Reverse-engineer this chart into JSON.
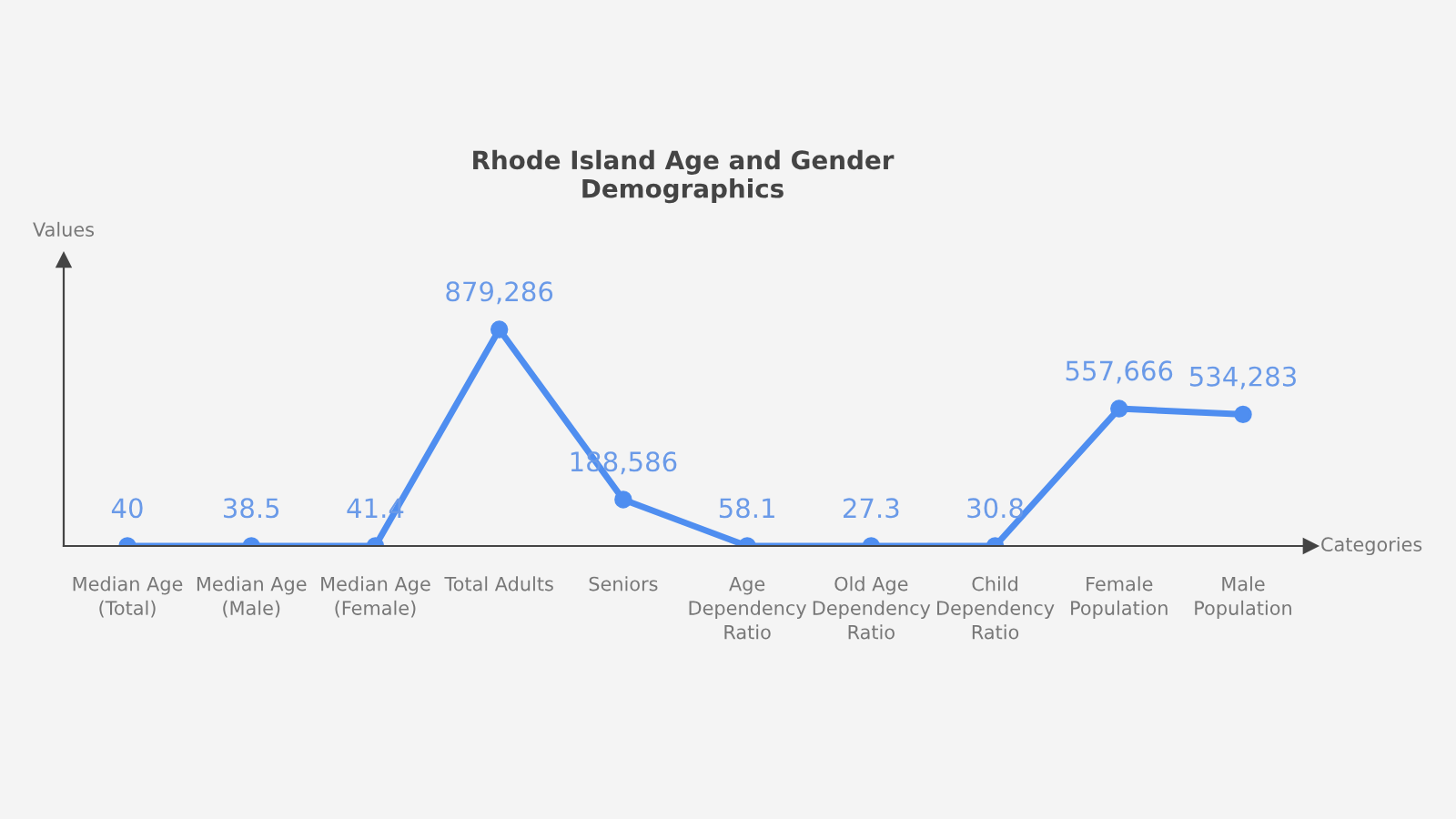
{
  "chart_data": {
    "type": "line",
    "title": "Rhode Island Age and Gender\nDemographics",
    "xlabel": "Categories",
    "ylabel": "Values",
    "categories": [
      "Median Age\n(Total)",
      "Median Age\n(Male)",
      "Median Age\n(Female)",
      "Total Adults",
      "Seniors",
      "Age\nDependency\nRatio",
      "Old Age\nDependency\nRatio",
      "Child\nDependency\nRatio",
      "Female\nPopulation",
      "Male\nPopulation"
    ],
    "series": [
      {
        "color": "#4f8ef0",
        "values": [
          40,
          38.5,
          41.4,
          879286,
          188586,
          58.1,
          27.3,
          30.8,
          557666,
          534283
        ],
        "value_labels": [
          "40",
          "38.5",
          "41.4",
          "879,286",
          "188,586",
          "58.1",
          "27.3",
          "30.8",
          "557,666",
          "534,283"
        ]
      }
    ],
    "marker": "circle",
    "line_style": "solid",
    "grid": false,
    "legend": false
  }
}
